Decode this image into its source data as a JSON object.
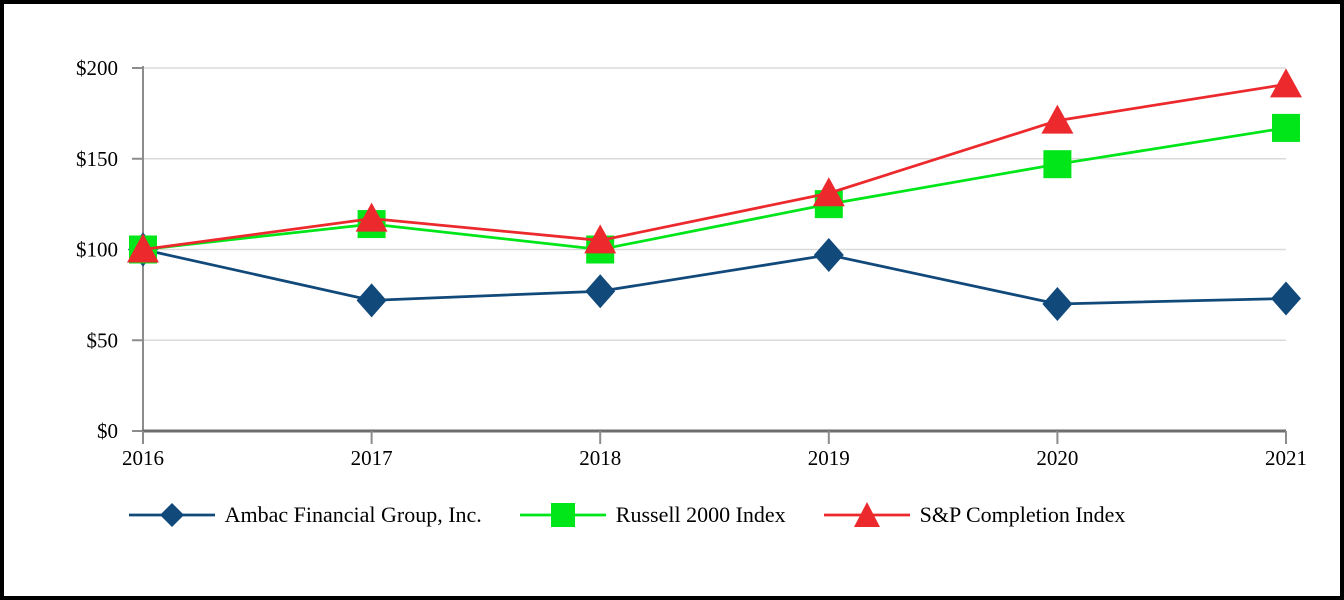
{
  "chart_data": {
    "type": "line",
    "title": "",
    "x_labels": [
      "2016",
      "2017",
      "2018",
      "2019",
      "2020",
      "2021"
    ],
    "y_tick_values": [
      0,
      50,
      100,
      150,
      200
    ],
    "y_tick_labels": [
      "$0",
      "$50",
      "$100",
      "$150",
      "$200"
    ],
    "ylim": [
      0,
      200
    ],
    "grid": "horizontal",
    "legend_position": "bottom",
    "series": [
      {
        "name": "Ambac Financial Group, Inc.",
        "marker": "diamond",
        "color": "#12497B",
        "values": [
          100,
          72,
          77,
          97,
          70,
          73
        ]
      },
      {
        "name": "Russell 2000 Index",
        "marker": "square",
        "color": "#00E619",
        "values": [
          100,
          114,
          100,
          125,
          147,
          167
        ]
      },
      {
        "name": "S&P Completion Index",
        "marker": "triangle",
        "color": "#EC2A2D",
        "values": [
          100,
          117,
          105,
          131,
          171,
          191
        ]
      }
    ],
    "axis_colors": {
      "gridline": "#DADADA",
      "axis": "#8C8C8C",
      "baseline": "#6E6E6E",
      "label": "#000000"
    }
  }
}
